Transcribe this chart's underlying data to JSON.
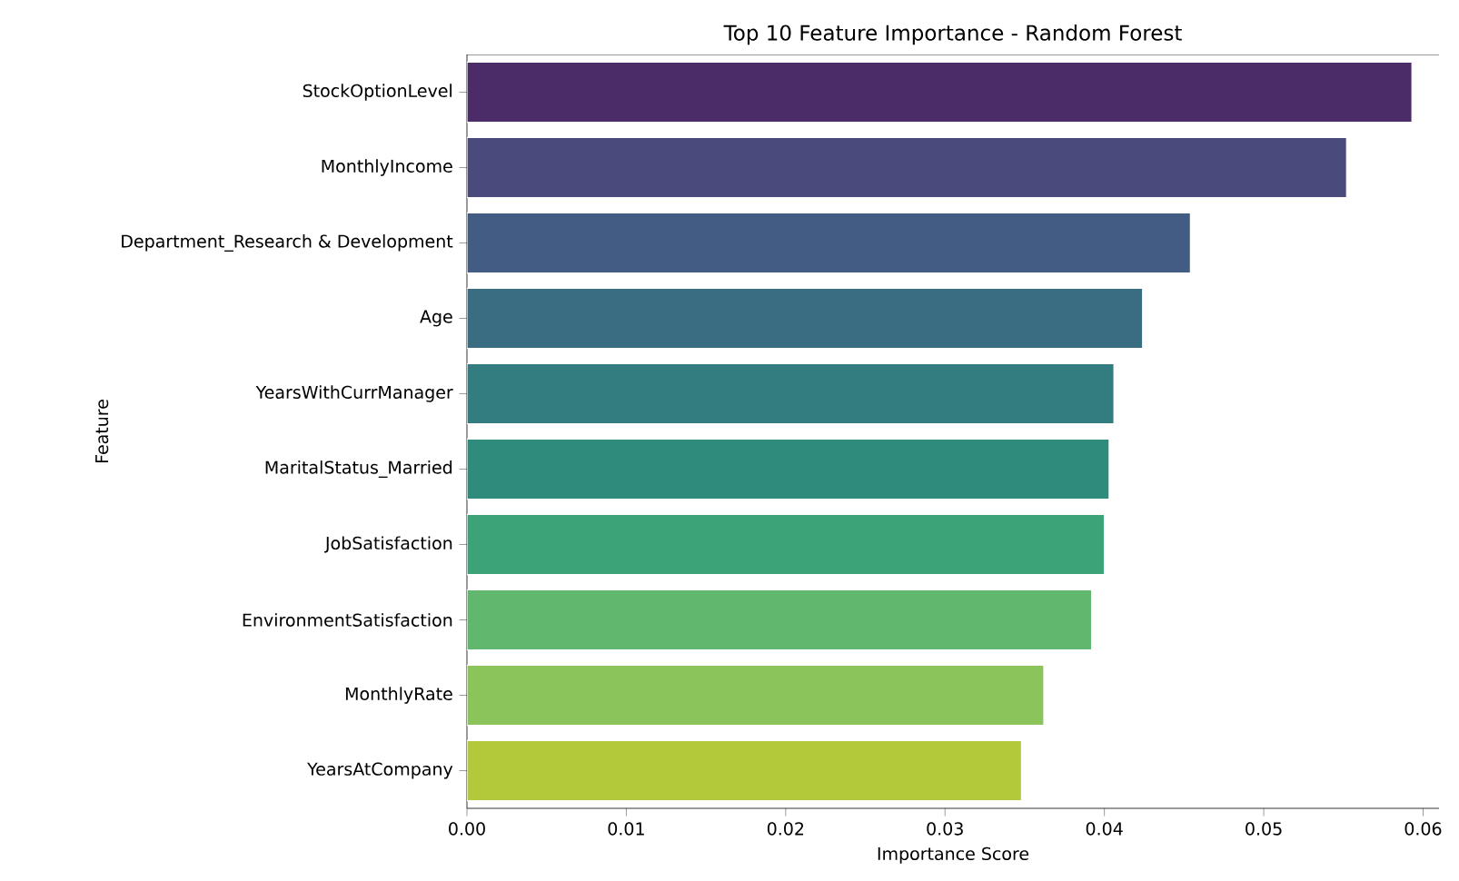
{
  "chart_data": {
    "type": "bar",
    "orientation": "horizontal",
    "title": "Top 10 Feature Importance - Random Forest",
    "xlabel": "Importance Score",
    "ylabel": "Feature",
    "categories": [
      "StockOptionLevel",
      "MonthlyIncome",
      "Department_Research & Development",
      "Age",
      "YearsWithCurrManager",
      "MaritalStatus_Married",
      "JobSatisfaction",
      "EnvironmentSatisfaction",
      "MonthlyRate",
      "YearsAtCompany"
    ],
    "values": [
      0.0593,
      0.0552,
      0.0454,
      0.0424,
      0.0406,
      0.0403,
      0.04,
      0.0392,
      0.0362,
      0.0348
    ],
    "colors": [
      "#4b2c69",
      "#4b4a7d",
      "#435c83",
      "#3a6c82",
      "#337c80",
      "#2f8b7c",
      "#3ca277",
      "#61b76e",
      "#8ac45a",
      "#b3c939"
    ],
    "xlim": [
      0,
      0.061
    ],
    "xticks": [
      {
        "value": 0,
        "label": "0.00"
      },
      0.01,
      0.02,
      0.03,
      0.04,
      0.05,
      0.06
    ]
  }
}
